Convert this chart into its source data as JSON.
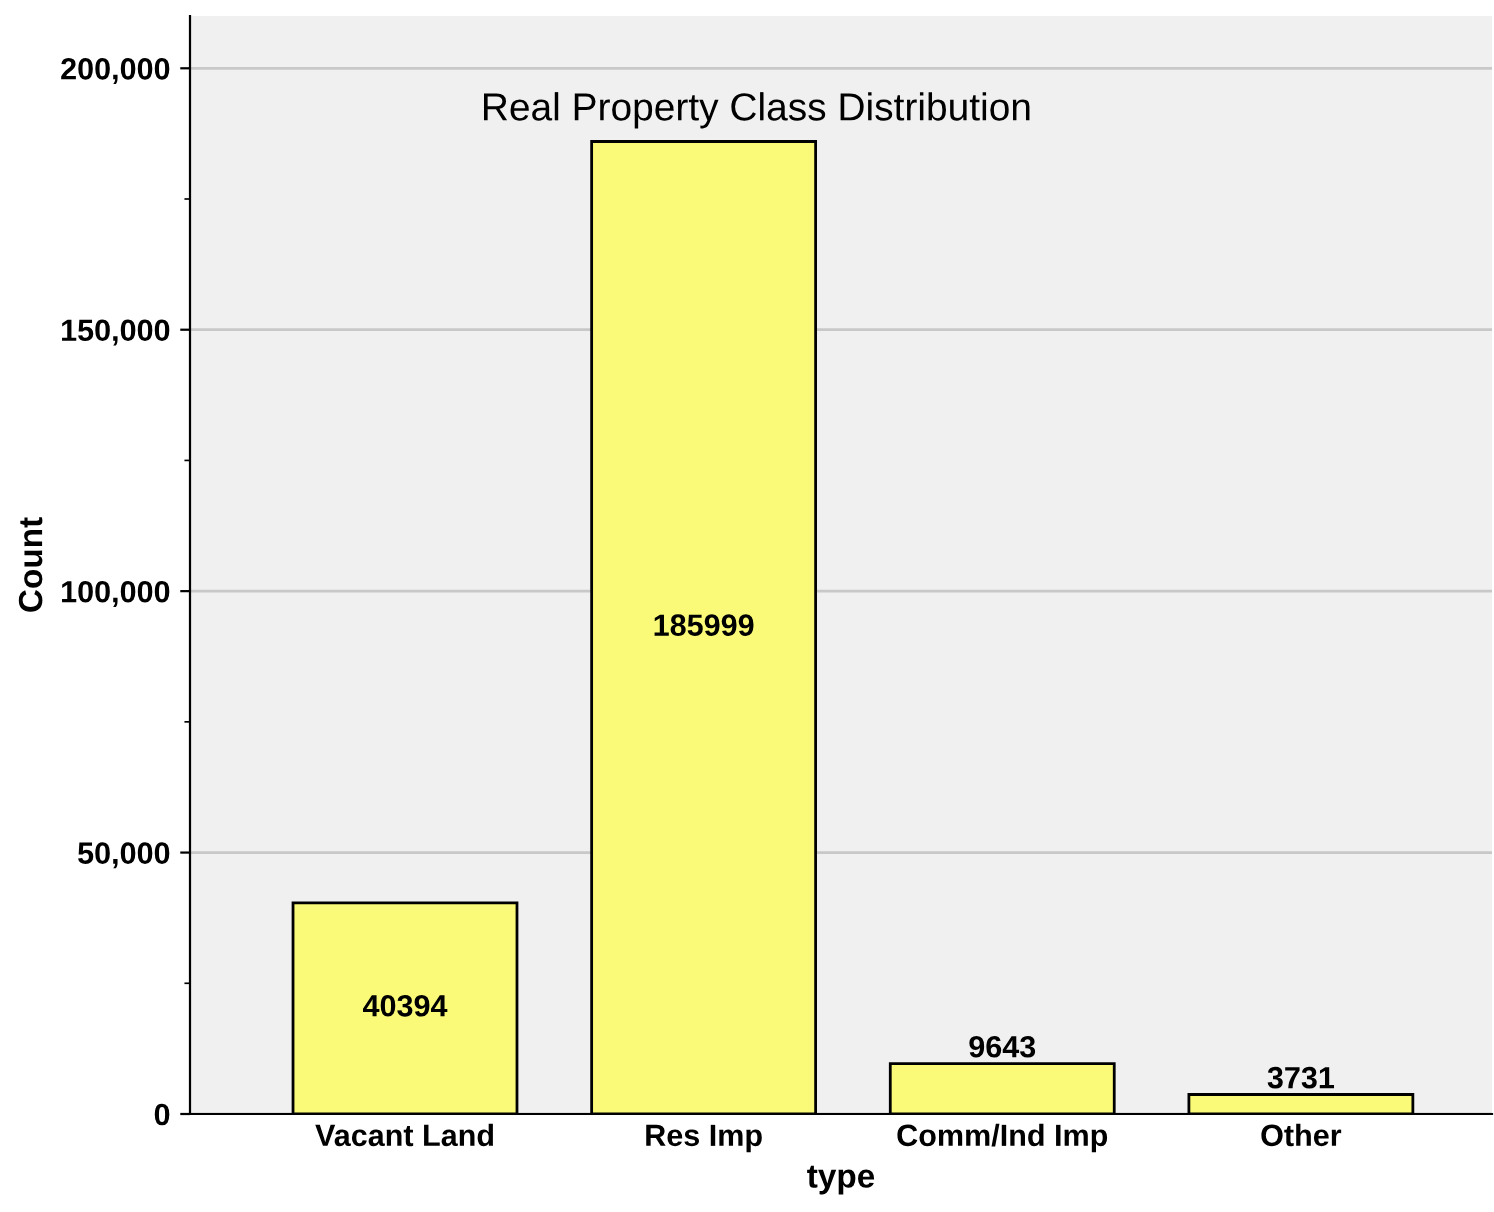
{
  "chart_data": {
    "type": "bar",
    "title": "Real Property Class Distribution",
    "xlabel": "type",
    "ylabel": "Count",
    "categories": [
      "Vacant Land",
      "Res Imp",
      "Comm/Ind Imp",
      "Other"
    ],
    "values": [
      40394,
      185999,
      9643,
      3731
    ],
    "color": "#fafa78",
    "ylim": [
      0,
      210000
    ],
    "yticks": [
      0,
      {
        "value": 25000,
        "label": null
      },
      {
        "value": 50000,
        "label": "50,000"
      },
      {
        "value": 75000,
        "label": null
      },
      {
        "value": 100000,
        "label": "100,000"
      },
      {
        "value": 125000,
        "label": null
      },
      {
        "value": 150000,
        "label": "150,000"
      },
      {
        "value": 175000,
        "label": null
      },
      {
        "value": 200000,
        "label": "200,000"
      }
    ],
    "grid": "y",
    "data_labels": true
  }
}
